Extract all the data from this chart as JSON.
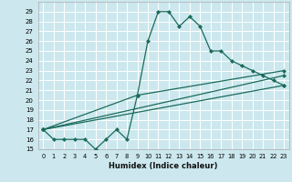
{
  "title": "",
  "xlabel": "Humidex (Indice chaleur)",
  "bg_color": "#cce8ee",
  "grid_color": "#ffffff",
  "line_color": "#1a6b5a",
  "xlim": [
    -0.5,
    23.5
  ],
  "ylim": [
    15,
    30
  ],
  "xticks": [
    0,
    1,
    2,
    3,
    4,
    5,
    6,
    7,
    8,
    9,
    10,
    11,
    12,
    13,
    14,
    15,
    16,
    17,
    18,
    19,
    20,
    21,
    22,
    23
  ],
  "yticks": [
    15,
    16,
    17,
    18,
    19,
    20,
    21,
    22,
    23,
    24,
    25,
    26,
    27,
    28,
    29
  ],
  "main_x": [
    0,
    1,
    2,
    3,
    4,
    5,
    6,
    7,
    8,
    9,
    10,
    11,
    12,
    13,
    14,
    15,
    16,
    17,
    18,
    19,
    20,
    21,
    22,
    23
  ],
  "main_y": [
    17,
    16,
    16,
    16,
    16,
    15,
    16,
    17,
    16,
    20.5,
    26,
    29,
    29,
    27.5,
    28.5,
    27.5,
    25,
    25,
    24,
    23.5,
    23,
    22.5,
    22,
    21.5
  ],
  "line1_x": [
    0,
    9,
    23
  ],
  "line1_y": [
    17,
    20.5,
    23
  ],
  "line2_x": [
    0,
    23
  ],
  "line2_y": [
    17,
    22.5
  ],
  "line3_x": [
    0,
    23
  ],
  "line3_y": [
    17,
    21.5
  ]
}
